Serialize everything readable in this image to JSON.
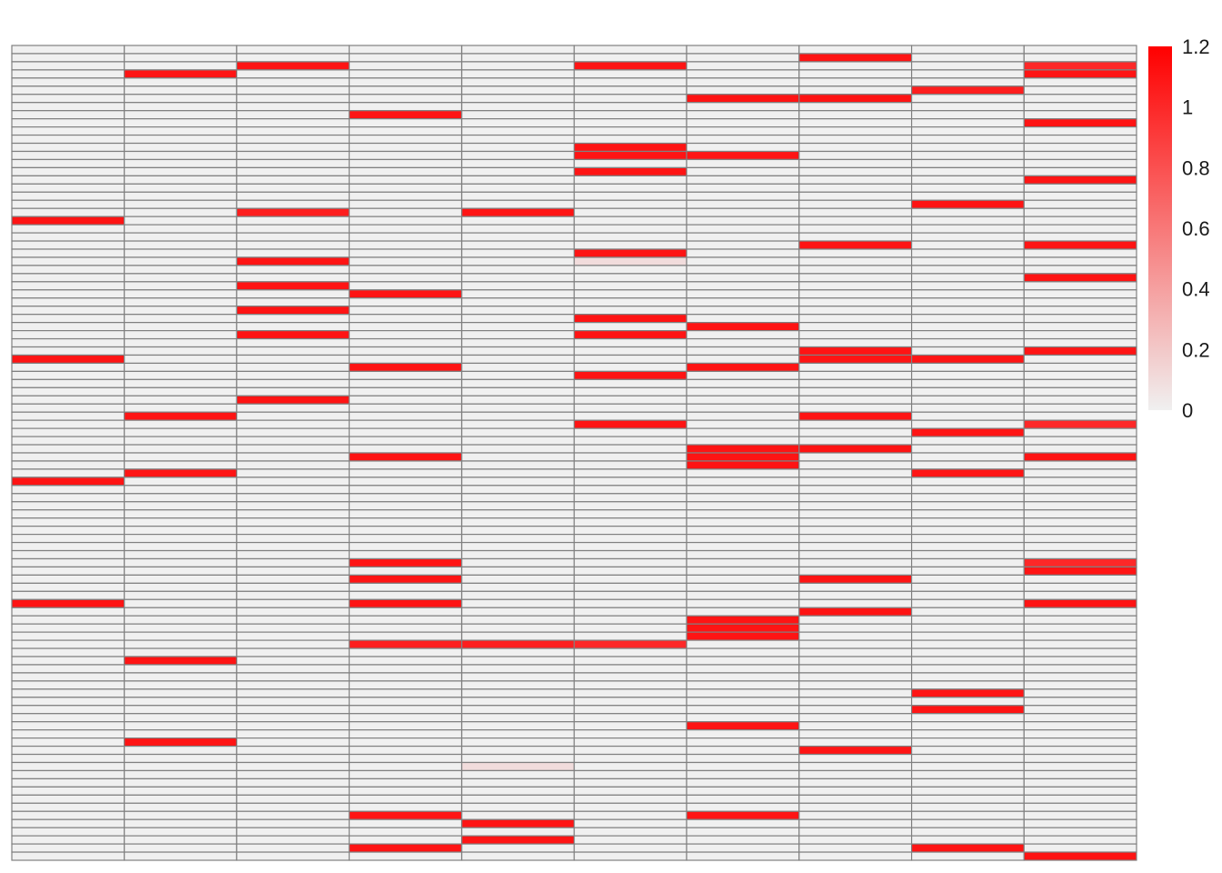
{
  "chart_data": {
    "type": "heatmap",
    "title": "",
    "xlabel": "",
    "ylabel": "",
    "n_rows": 100,
    "n_cols": 10,
    "colors": {
      "low": "#f0f0f0",
      "high": "#ff0000",
      "grid": "#808080"
    },
    "colorbar": {
      "range": [
        0,
        1.2
      ],
      "ticks": [
        {
          "value": 0,
          "label": "0"
        },
        {
          "value": 0.2,
          "label": "0.2"
        },
        {
          "value": 0.4,
          "label": "0.4"
        },
        {
          "value": 0.6,
          "label": "0.6"
        },
        {
          "value": 0.8,
          "label": "0.8"
        },
        {
          "value": 1,
          "label": "1"
        },
        {
          "value": 1.2,
          "label": "1.2"
        }
      ]
    },
    "cells": [
      {
        "col": 0,
        "rows": [
          21,
          38,
          53,
          68
        ],
        "values": [
          1.1,
          1.1,
          1.1,
          1.1
        ]
      },
      {
        "col": 1,
        "rows": [
          3,
          45,
          52,
          75,
          85
        ],
        "values": [
          1.1,
          1.1,
          1.1,
          1.1,
          1.1
        ]
      },
      {
        "col": 2,
        "rows": [
          2,
          20,
          26,
          29,
          32,
          35,
          43
        ],
        "values": [
          1.1,
          1.05,
          1.1,
          1.1,
          1.1,
          1.1,
          1.1
        ]
      },
      {
        "col": 3,
        "rows": [
          8,
          30,
          39,
          50,
          63,
          65,
          68,
          73,
          94,
          98
        ],
        "values": [
          1.1,
          1.1,
          1.1,
          1.1,
          1.1,
          1.1,
          1.1,
          1.05,
          1.1,
          1.1
        ]
      },
      {
        "col": 4,
        "rows": [
          20,
          73,
          88,
          95,
          97
        ],
        "values": [
          1.1,
          1.05,
          0.1,
          1.1,
          1.1
        ]
      },
      {
        "col": 5,
        "rows": [
          2,
          12,
          13,
          15,
          25,
          26,
          33,
          35,
          40,
          46,
          73
        ],
        "values": [
          1.1,
          1.1,
          1.1,
          1.1,
          1.1,
          0.1,
          1.1,
          1.1,
          1.1,
          1.1,
          1.0
        ]
      },
      {
        "col": 6,
        "rows": [
          6,
          13,
          34,
          39,
          49,
          50,
          51,
          70,
          71,
          72,
          83,
          94
        ],
        "values": [
          1.1,
          1.1,
          1.1,
          1.1,
          1.1,
          1.1,
          1.1,
          1.1,
          1.1,
          1.1,
          1.1,
          1.1
        ]
      },
      {
        "col": 7,
        "rows": [
          1,
          6,
          24,
          37,
          38,
          45,
          49,
          65,
          69,
          86
        ],
        "values": [
          1.1,
          1.1,
          1.1,
          1.1,
          1.1,
          1.1,
          1.1,
          1.1,
          1.1,
          1.1
        ]
      },
      {
        "col": 8,
        "rows": [
          5,
          19,
          38,
          47,
          52,
          79,
          81,
          98
        ],
        "values": [
          1.05,
          1.1,
          1.1,
          1.1,
          1.1,
          1.1,
          1.1,
          1.1
        ]
      },
      {
        "col": 9,
        "rows": [
          2,
          3,
          9,
          16,
          24,
          28,
          37,
          46,
          50,
          63,
          64,
          68,
          99
        ],
        "values": [
          1.0,
          1.1,
          1.1,
          1.1,
          1.1,
          1.1,
          1.1,
          1.0,
          1.1,
          1.0,
          1.1,
          1.1,
          1.1
        ]
      }
    ]
  }
}
